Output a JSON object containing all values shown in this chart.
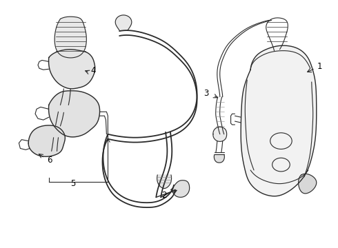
{
  "bg_color": "#ffffff",
  "line_color": "#2a2a2a",
  "lw_thin": 0.8,
  "lw_med": 1.0,
  "lw_thick": 1.3,
  "figsize": [
    4.9,
    3.6
  ],
  "dpi": 100
}
